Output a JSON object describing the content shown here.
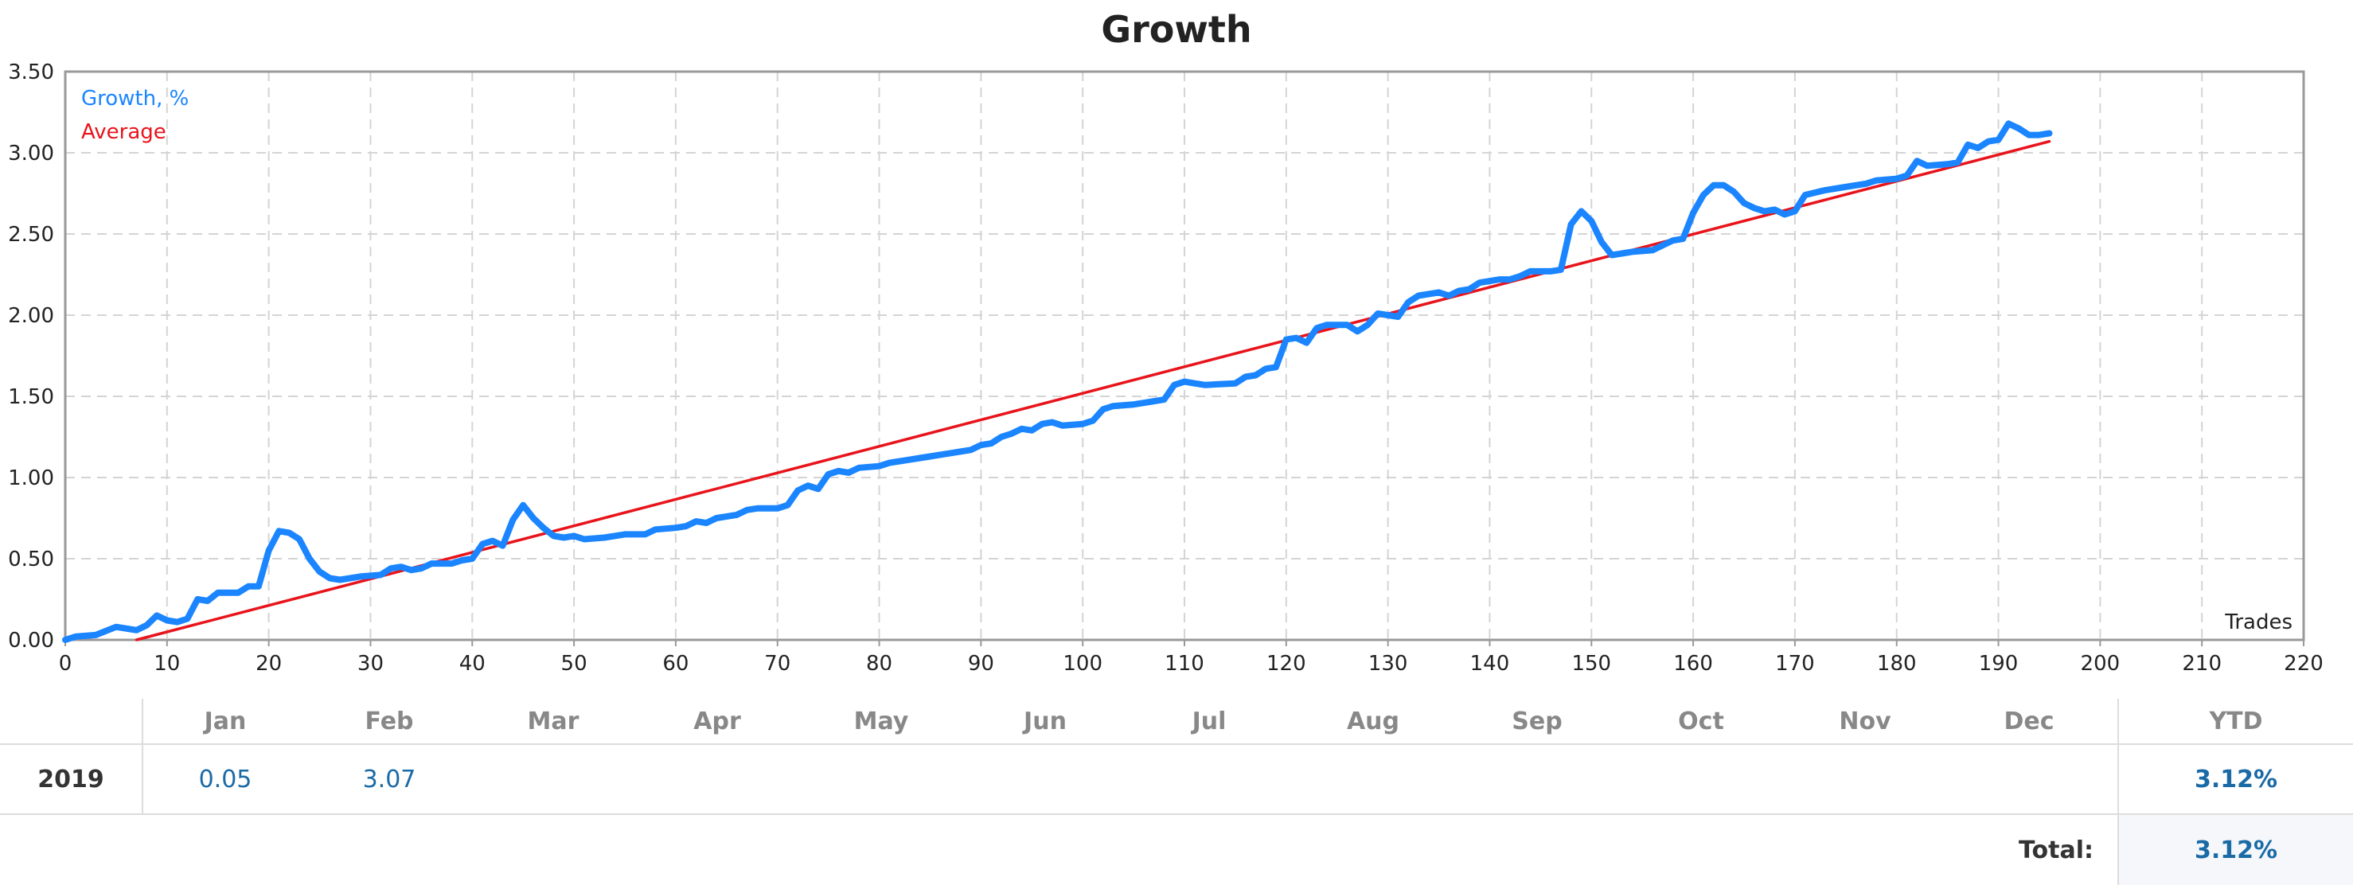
{
  "chart_data": {
    "type": "line",
    "title": "Growth",
    "xlabel": "Trades",
    "ylabel": "",
    "xlim": [
      0,
      220
    ],
    "ylim": [
      0,
      3.5
    ],
    "x_ticks": [
      "0",
      "10",
      "20",
      "30",
      "40",
      "50",
      "60",
      "70",
      "80",
      "90",
      "100",
      "110",
      "120",
      "130",
      "140",
      "150",
      "160",
      "170",
      "180",
      "190",
      "200",
      "210",
      "220"
    ],
    "y_ticks": [
      "0.00",
      "0.50",
      "1.00",
      "1.50",
      "2.00",
      "2.50",
      "3.00",
      "3.50"
    ],
    "grid": true,
    "legend_position": "top-left",
    "series": [
      {
        "name": "Growth, %",
        "color": "#1a85ff",
        "points": [
          [
            0,
            0.0
          ],
          [
            1,
            0.02
          ],
          [
            3,
            0.03
          ],
          [
            5,
            0.08
          ],
          [
            7,
            0.06
          ],
          [
            8,
            0.09
          ],
          [
            9,
            0.15
          ],
          [
            10,
            0.12
          ],
          [
            11,
            0.11
          ],
          [
            12,
            0.13
          ],
          [
            13,
            0.25
          ],
          [
            14,
            0.24
          ],
          [
            15,
            0.29
          ],
          [
            17,
            0.29
          ],
          [
            18,
            0.33
          ],
          [
            19,
            0.33
          ],
          [
            20,
            0.55
          ],
          [
            21,
            0.67
          ],
          [
            22,
            0.66
          ],
          [
            23,
            0.62
          ],
          [
            24,
            0.5
          ],
          [
            25,
            0.42
          ],
          [
            26,
            0.38
          ],
          [
            27,
            0.37
          ],
          [
            29,
            0.39
          ],
          [
            31,
            0.4
          ],
          [
            32,
            0.44
          ],
          [
            33,
            0.45
          ],
          [
            34,
            0.43
          ],
          [
            35,
            0.44
          ],
          [
            36,
            0.47
          ],
          [
            38,
            0.47
          ],
          [
            39,
            0.49
          ],
          [
            40,
            0.5
          ],
          [
            41,
            0.59
          ],
          [
            42,
            0.61
          ],
          [
            43,
            0.58
          ],
          [
            44,
            0.74
          ],
          [
            45,
            0.83
          ],
          [
            46,
            0.75
          ],
          [
            47,
            0.69
          ],
          [
            48,
            0.64
          ],
          [
            49,
            0.63
          ],
          [
            50,
            0.64
          ],
          [
            51,
            0.62
          ],
          [
            53,
            0.63
          ],
          [
            55,
            0.65
          ],
          [
            57,
            0.65
          ],
          [
            58,
            0.68
          ],
          [
            60,
            0.69
          ],
          [
            61,
            0.7
          ],
          [
            62,
            0.73
          ],
          [
            63,
            0.72
          ],
          [
            64,
            0.75
          ],
          [
            66,
            0.77
          ],
          [
            67,
            0.8
          ],
          [
            68,
            0.81
          ],
          [
            70,
            0.81
          ],
          [
            71,
            0.83
          ],
          [
            72,
            0.92
          ],
          [
            73,
            0.95
          ],
          [
            74,
            0.93
          ],
          [
            75,
            1.02
          ],
          [
            76,
            1.04
          ],
          [
            77,
            1.03
          ],
          [
            78,
            1.06
          ],
          [
            80,
            1.07
          ],
          [
            81,
            1.09
          ],
          [
            82,
            1.1
          ],
          [
            83,
            1.11
          ],
          [
            84,
            1.12
          ],
          [
            85,
            1.13
          ],
          [
            86,
            1.14
          ],
          [
            87,
            1.15
          ],
          [
            89,
            1.17
          ],
          [
            90,
            1.2
          ],
          [
            91,
            1.21
          ],
          [
            92,
            1.25
          ],
          [
            93,
            1.27
          ],
          [
            94,
            1.3
          ],
          [
            95,
            1.29
          ],
          [
            96,
            1.33
          ],
          [
            97,
            1.34
          ],
          [
            98,
            1.32
          ],
          [
            100,
            1.33
          ],
          [
            101,
            1.35
          ],
          [
            102,
            1.42
          ],
          [
            103,
            1.44
          ],
          [
            105,
            1.45
          ],
          [
            106,
            1.46
          ],
          [
            108,
            1.48
          ],
          [
            109,
            1.57
          ],
          [
            110,
            1.59
          ],
          [
            111,
            1.58
          ],
          [
            112,
            1.57
          ],
          [
            115,
            1.58
          ],
          [
            116,
            1.62
          ],
          [
            117,
            1.63
          ],
          [
            118,
            1.67
          ],
          [
            119,
            1.68
          ],
          [
            120,
            1.85
          ],
          [
            121,
            1.86
          ],
          [
            122,
            1.83
          ],
          [
            123,
            1.92
          ],
          [
            124,
            1.94
          ],
          [
            126,
            1.94
          ],
          [
            127,
            1.9
          ],
          [
            128,
            1.94
          ],
          [
            129,
            2.01
          ],
          [
            130,
            2.0
          ],
          [
            131,
            1.99
          ],
          [
            132,
            2.08
          ],
          [
            133,
            2.12
          ],
          [
            135,
            2.14
          ],
          [
            136,
            2.12
          ],
          [
            137,
            2.15
          ],
          [
            138,
            2.16
          ],
          [
            139,
            2.2
          ],
          [
            141,
            2.22
          ],
          [
            142,
            2.22
          ],
          [
            143,
            2.24
          ],
          [
            144,
            2.27
          ],
          [
            146,
            2.27
          ],
          [
            147,
            2.28
          ],
          [
            148,
            2.56
          ],
          [
            149,
            2.64
          ],
          [
            150,
            2.58
          ],
          [
            151,
            2.45
          ],
          [
            152,
            2.37
          ],
          [
            153,
            2.38
          ],
          [
            154,
            2.39
          ],
          [
            156,
            2.4
          ],
          [
            157,
            2.43
          ],
          [
            158,
            2.46
          ],
          [
            159,
            2.47
          ],
          [
            160,
            2.63
          ],
          [
            161,
            2.74
          ],
          [
            162,
            2.8
          ],
          [
            163,
            2.8
          ],
          [
            164,
            2.76
          ],
          [
            165,
            2.69
          ],
          [
            166,
            2.66
          ],
          [
            167,
            2.64
          ],
          [
            168,
            2.65
          ],
          [
            169,
            2.62
          ],
          [
            170,
            2.64
          ],
          [
            171,
            2.74
          ],
          [
            173,
            2.77
          ],
          [
            175,
            2.79
          ],
          [
            177,
            2.81
          ],
          [
            178,
            2.83
          ],
          [
            180,
            2.84
          ],
          [
            181,
            2.86
          ],
          [
            182,
            2.95
          ],
          [
            183,
            2.92
          ],
          [
            185,
            2.93
          ],
          [
            186,
            2.94
          ],
          [
            187,
            3.05
          ],
          [
            188,
            3.03
          ],
          [
            189,
            3.07
          ],
          [
            190,
            3.08
          ],
          [
            191,
            3.18
          ],
          [
            192,
            3.15
          ],
          [
            193,
            3.11
          ],
          [
            194,
            3.11
          ],
          [
            195,
            3.12
          ]
        ]
      },
      {
        "name": "Average",
        "color": "#e8141b",
        "points": [
          [
            7,
            0.0
          ],
          [
            195,
            3.07
          ]
        ]
      }
    ]
  },
  "summary": {
    "months": [
      "Jan",
      "Feb",
      "Mar",
      "Apr",
      "May",
      "Jun",
      "Jul",
      "Aug",
      "Sep",
      "Oct",
      "Nov",
      "Dec"
    ],
    "ytd_label": "YTD",
    "rows": [
      {
        "year": "2019",
        "values": [
          "0.05",
          "3.07",
          "",
          "",
          "",
          "",
          "",
          "",
          "",
          "",
          "",
          ""
        ],
        "ytd": "3.12%"
      }
    ],
    "total_label": "Total:",
    "total_value": "3.12%",
    "value_color": "#1a6aa6",
    "header_color": "#888888"
  }
}
